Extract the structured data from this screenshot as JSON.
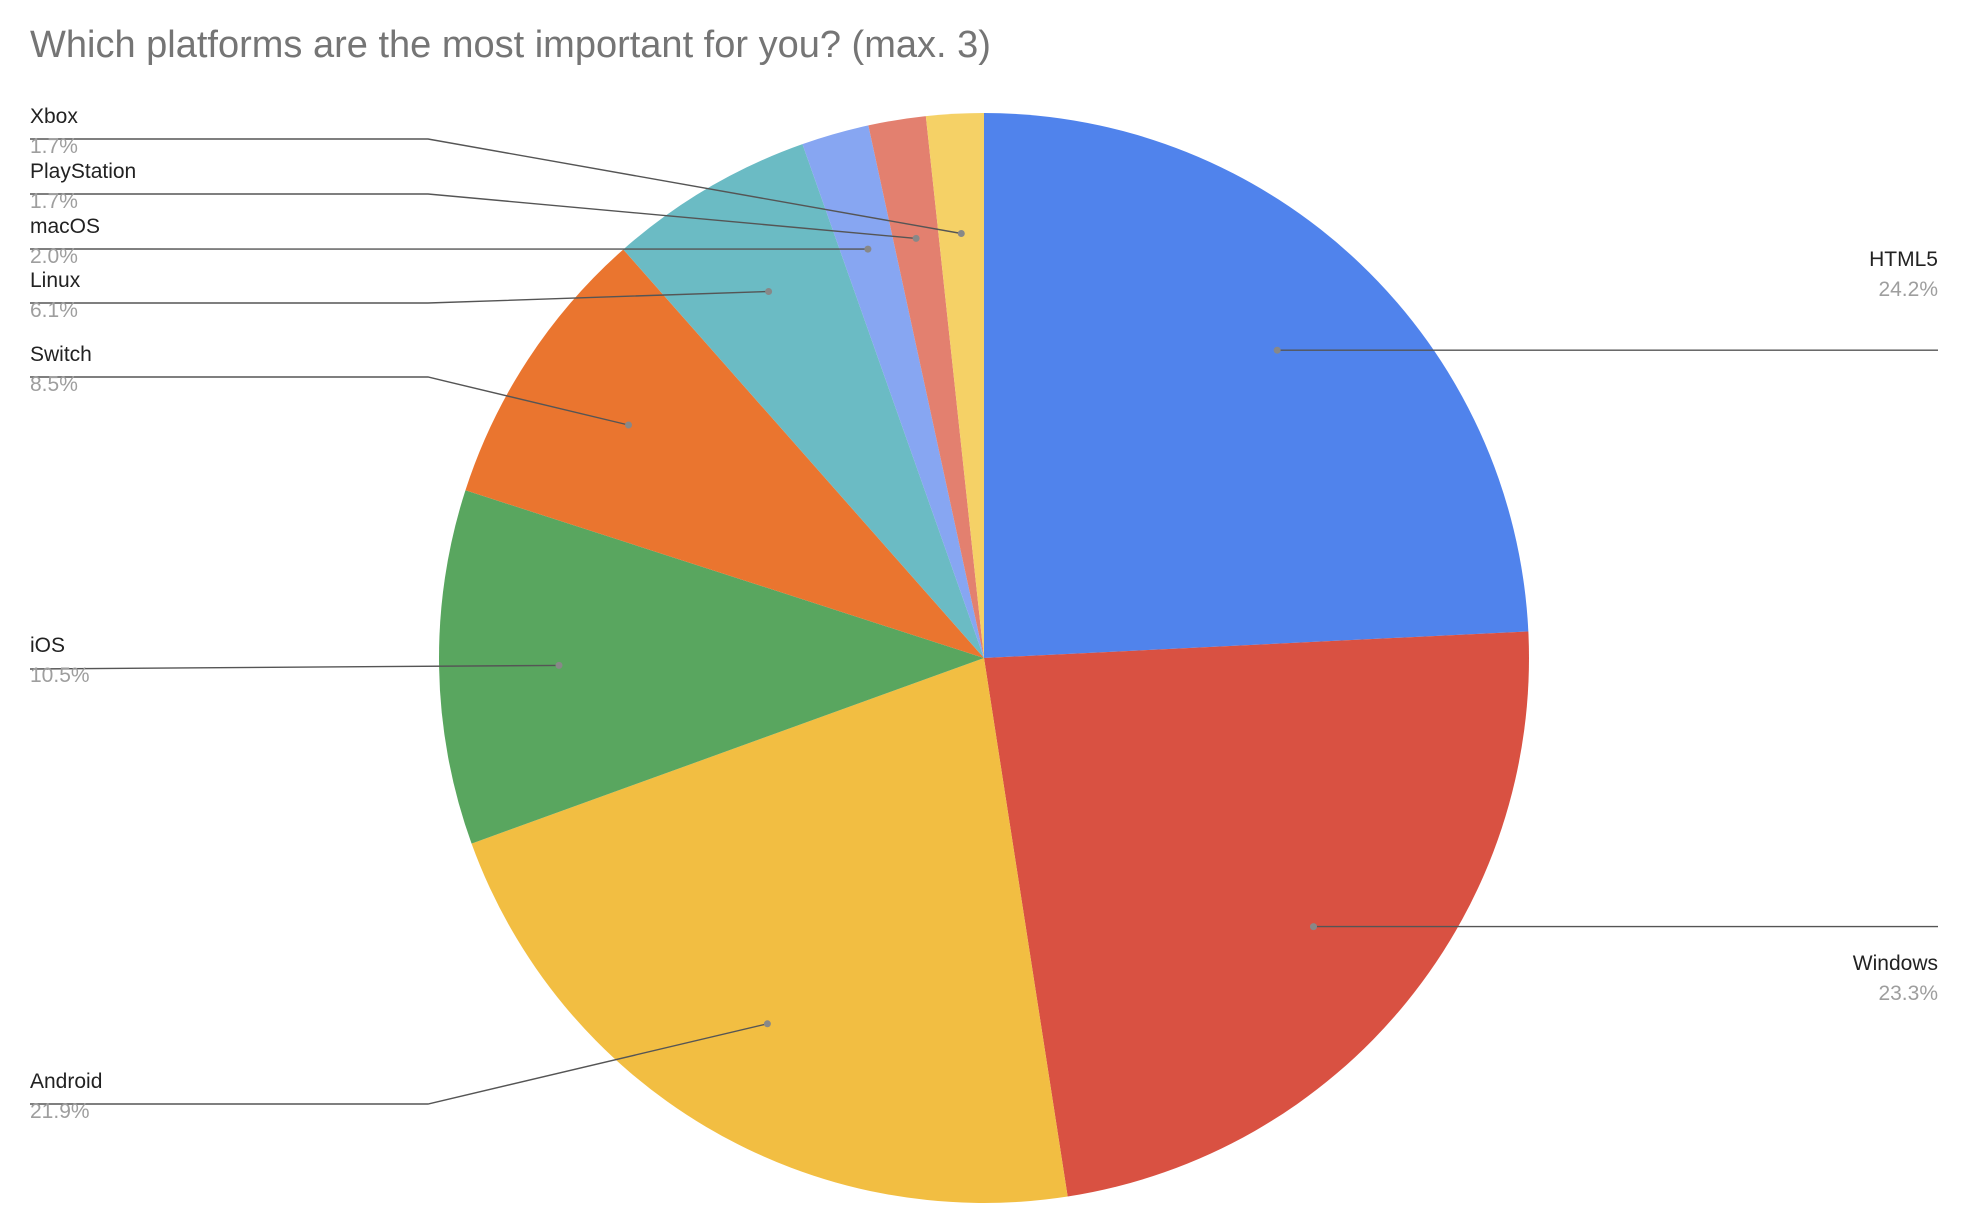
{
  "chart_data": {
    "type": "pie",
    "title": "Which platforms are the most important for you? (max. 3)",
    "slices": [
      {
        "label": "HTML5",
        "value": 24.2,
        "percent_label": "24.2%",
        "color": "#5083EC"
      },
      {
        "label": "Windows",
        "value": 23.3,
        "percent_label": "23.3%",
        "color": "#D95142"
      },
      {
        "label": "Android",
        "value": 21.9,
        "percent_label": "21.9%",
        "color": "#F2BE42"
      },
      {
        "label": "iOS",
        "value": 10.5,
        "percent_label": "10.5%",
        "color": "#59A65F"
      },
      {
        "label": "Switch",
        "value": 8.5,
        "percent_label": "8.5%",
        "color": "#EA752F"
      },
      {
        "label": "Linux",
        "value": 6.1,
        "percent_label": "6.1%",
        "color": "#6BBBC4"
      },
      {
        "label": "macOS",
        "value": 2.0,
        "percent_label": "2.0%",
        "color": "#87A6F2"
      },
      {
        "label": "PlayStation",
        "value": 1.7,
        "percent_label": "1.7%",
        "color": "#E3806F"
      },
      {
        "label": "Xbox",
        "value": 1.7,
        "percent_label": "1.7%",
        "color": "#F5D166"
      }
    ],
    "legend": "none",
    "label_placement": "outside-with-leader-lines"
  }
}
